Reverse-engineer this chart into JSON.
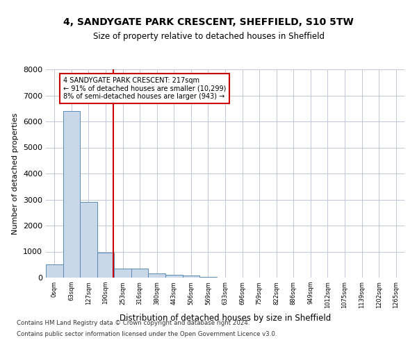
{
  "title_line1": "4, SANDYGATE PARK CRESCENT, SHEFFIELD, S10 5TW",
  "title_line2": "Size of property relative to detached houses in Sheffield",
  "xlabel": "Distribution of detached houses by size in Sheffield",
  "ylabel": "Number of detached properties",
  "bin_labels": [
    "0sqm",
    "63sqm",
    "127sqm",
    "190sqm",
    "253sqm",
    "316sqm",
    "380sqm",
    "443sqm",
    "506sqm",
    "569sqm",
    "633sqm",
    "696sqm",
    "759sqm",
    "822sqm",
    "886sqm",
    "949sqm",
    "1012sqm",
    "1075sqm",
    "1139sqm",
    "1202sqm",
    "1265sqm"
  ],
  "bar_values": [
    500,
    6400,
    2900,
    950,
    350,
    350,
    150,
    100,
    75,
    30,
    10,
    5,
    3,
    2,
    1,
    1,
    0,
    0,
    0,
    0,
    0
  ],
  "bar_color": "#c8d8e8",
  "bar_edge_color": "#5a8ab5",
  "grid_color": "#c0c8d8",
  "vline_x": 3.45,
  "vline_color": "#cc0000",
  "annotation_line1": "4 SANDYGATE PARK CRESCENT: 217sqm",
  "annotation_line2": "← 91% of detached houses are smaller (10,299)",
  "annotation_line3": "8% of semi-detached houses are larger (943) →",
  "annotation_box_color": "#cc0000",
  "ylim": [
    0,
    8000
  ],
  "yticks": [
    0,
    1000,
    2000,
    3000,
    4000,
    5000,
    6000,
    7000,
    8000
  ],
  "footer_line1": "Contains HM Land Registry data © Crown copyright and database right 2024.",
  "footer_line2": "Contains public sector information licensed under the Open Government Licence v3.0."
}
